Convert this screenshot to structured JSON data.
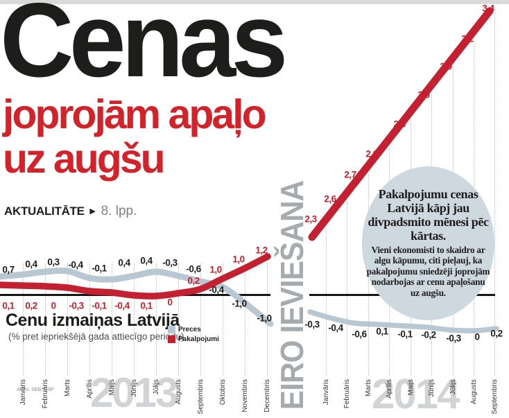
{
  "masthead": {
    "headline": "Cenas",
    "subheadline_line1": "joprojām apaļo",
    "subheadline_line2": "uz augšu",
    "kicker": "AKTUALITĀTE",
    "kicker_arrow": "▶",
    "page_ref": "8. lpp."
  },
  "annotation": {
    "euro_label": "EIRO IEVIEŠANA"
  },
  "callout": {
    "lead": "Pakalpojumu cenas Latvijā kāpj jau divpadsmito mēnesi pēc kārtas.",
    "body": "Vieni ekonomisti to skaidro ar algu kāpumu, citi pieļauj, ka pakalpojumu sniedzēji joprojām nodarbojas ar cenu apaļošanu uz augšu."
  },
  "chart": {
    "title": "Cenu izmaiņas Latvijā",
    "subtitle": "(% pret iepriekšējā gada attiecīgo periodu)",
    "source": "Avots: SEB, CSP",
    "legend": [
      {
        "label": "Preces",
        "color": "#b9c7d2"
      },
      {
        "label": "Pakalpojumi",
        "color": "#c32031"
      }
    ]
  },
  "chart_data": {
    "type": "line",
    "title": "Cenu izmaiņas Latvijā",
    "ylabel": "% pret iepriekšējā gada attiecīgo periodu",
    "grid": "vertical-dotted",
    "colors": {
      "Preces": "#b9c7d2",
      "Pakalpojumi": "#c32031"
    },
    "groups": [
      {
        "year": "2013",
        "categories": [
          "Janvāris",
          "Februāris",
          "Marts",
          "Aprīlis",
          "Maijs",
          "Jūnijs",
          "Jūlijs",
          "Augusts",
          "Septembris",
          "Oktobris",
          "Novembris",
          "Decembris"
        ],
        "series": [
          {
            "name": "Preces",
            "values": [
              0.7,
              0.4,
              0.3,
              -0.4,
              -0.1,
              0.4,
              0.4,
              -0.3,
              -0.6,
              -0.4,
              -1.0,
              -1.0
            ],
            "labels": [
              "0,7",
              "0,4",
              "0,3",
              "-0,4",
              "-0,1",
              "0,4",
              "0,4",
              "-0,3",
              "-0,6",
              "-0,4",
              "-1,0",
              "-1,0"
            ]
          },
          {
            "name": "Pakalpojumi",
            "values": [
              0.1,
              0.2,
              0,
              -0.3,
              -0.1,
              -0.4,
              0.1,
              0,
              0.2,
              1.0,
              1.0,
              1.2
            ],
            "labels": [
              "0,1",
              "0,2",
              "0",
              "-0,3",
              "-0,1",
              "-0,4",
              "0,1",
              "0",
              "0,2",
              "1,0",
              "1,0",
              "1,2"
            ]
          }
        ]
      },
      {
        "year": "2014",
        "categories": [
          "Janvāris",
          "Februāris",
          "Marts",
          "Aprīlis",
          "Maijs",
          "Jūnijs",
          "Jūlijs",
          "Augusts",
          "Septembris"
        ],
        "series": [
          {
            "name": "Preces",
            "values": [
              -0.3,
              -0.4,
              -0.6,
              0.1,
              -0.1,
              -0.2,
              -0.3,
              0,
              0.2
            ],
            "labels": [
              "-0,3",
              "-0,4",
              "-0,6",
              "0,1",
              "-0,1",
              "-0,2",
              "-0,3",
              "0",
              "0,2"
            ]
          },
          {
            "name": "Pakalpojumi",
            "values": [
              2.3,
              2.6,
              2.7,
              2.6,
              2.5,
              3.0,
              3.0,
              3.2,
              3.4
            ],
            "labels": [
              "2,3",
              "2,6",
              "2,7",
              "2,6",
              "2,5",
              "3,0",
              "3,0",
              "3,2",
              "3,4"
            ]
          }
        ]
      }
    ]
  }
}
